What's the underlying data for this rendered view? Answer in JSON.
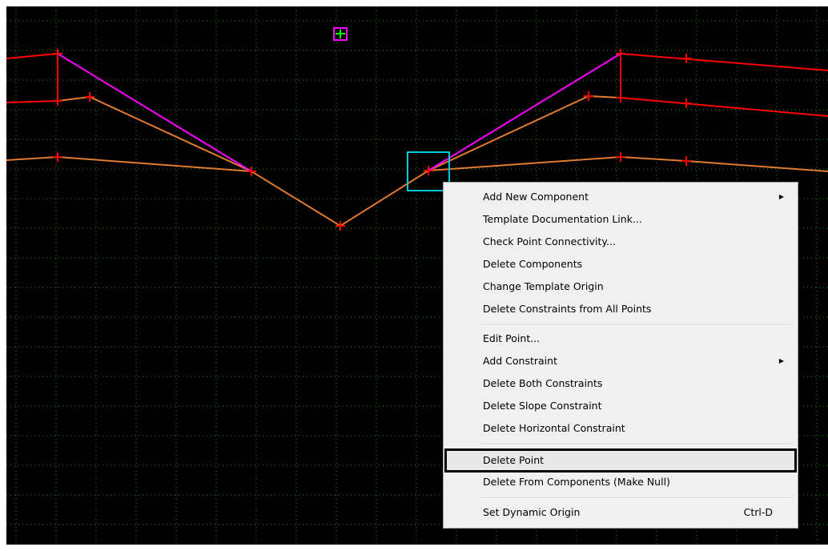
{
  "colors": {
    "background": "#000000",
    "grid": "#1f8f1f",
    "red_line": "#ff0000",
    "orange_line": "#e07a30",
    "magenta_line": "#ff00ff",
    "selection_box": "#00c8d8",
    "menu_bg": "#f0f0f0"
  },
  "context_menu": {
    "groups": [
      [
        {
          "label": "Add New Component",
          "submenu": true
        },
        {
          "label": "Template Documentation Link...",
          "submenu": false
        },
        {
          "label": "Check Point Connectivity...",
          "submenu": false
        },
        {
          "label": "Delete Components",
          "submenu": false
        },
        {
          "label": "Change Template Origin",
          "submenu": false
        },
        {
          "label": "Delete Constraints from All Points",
          "submenu": false
        }
      ],
      [
        {
          "label": "Edit Point...",
          "submenu": false
        },
        {
          "label": "Add Constraint",
          "submenu": true
        },
        {
          "label": "Delete Both Constraints",
          "submenu": false
        },
        {
          "label": "Delete Slope Constraint",
          "submenu": false
        },
        {
          "label": "Delete Horizontal Constraint",
          "submenu": false
        }
      ],
      [
        {
          "label": "Delete Point",
          "submenu": false,
          "highlighted": true
        },
        {
          "label": "Delete From Components (Make Null)",
          "submenu": false
        }
      ],
      [
        {
          "label": "Set Dynamic Origin",
          "submenu": false,
          "shortcut": "Ctrl-D"
        }
      ]
    ]
  },
  "icons": {
    "submenu_arrow": "triangle-right-icon",
    "origin_marker": "origin-marker-icon",
    "point_marker": "red-cross-icon"
  }
}
